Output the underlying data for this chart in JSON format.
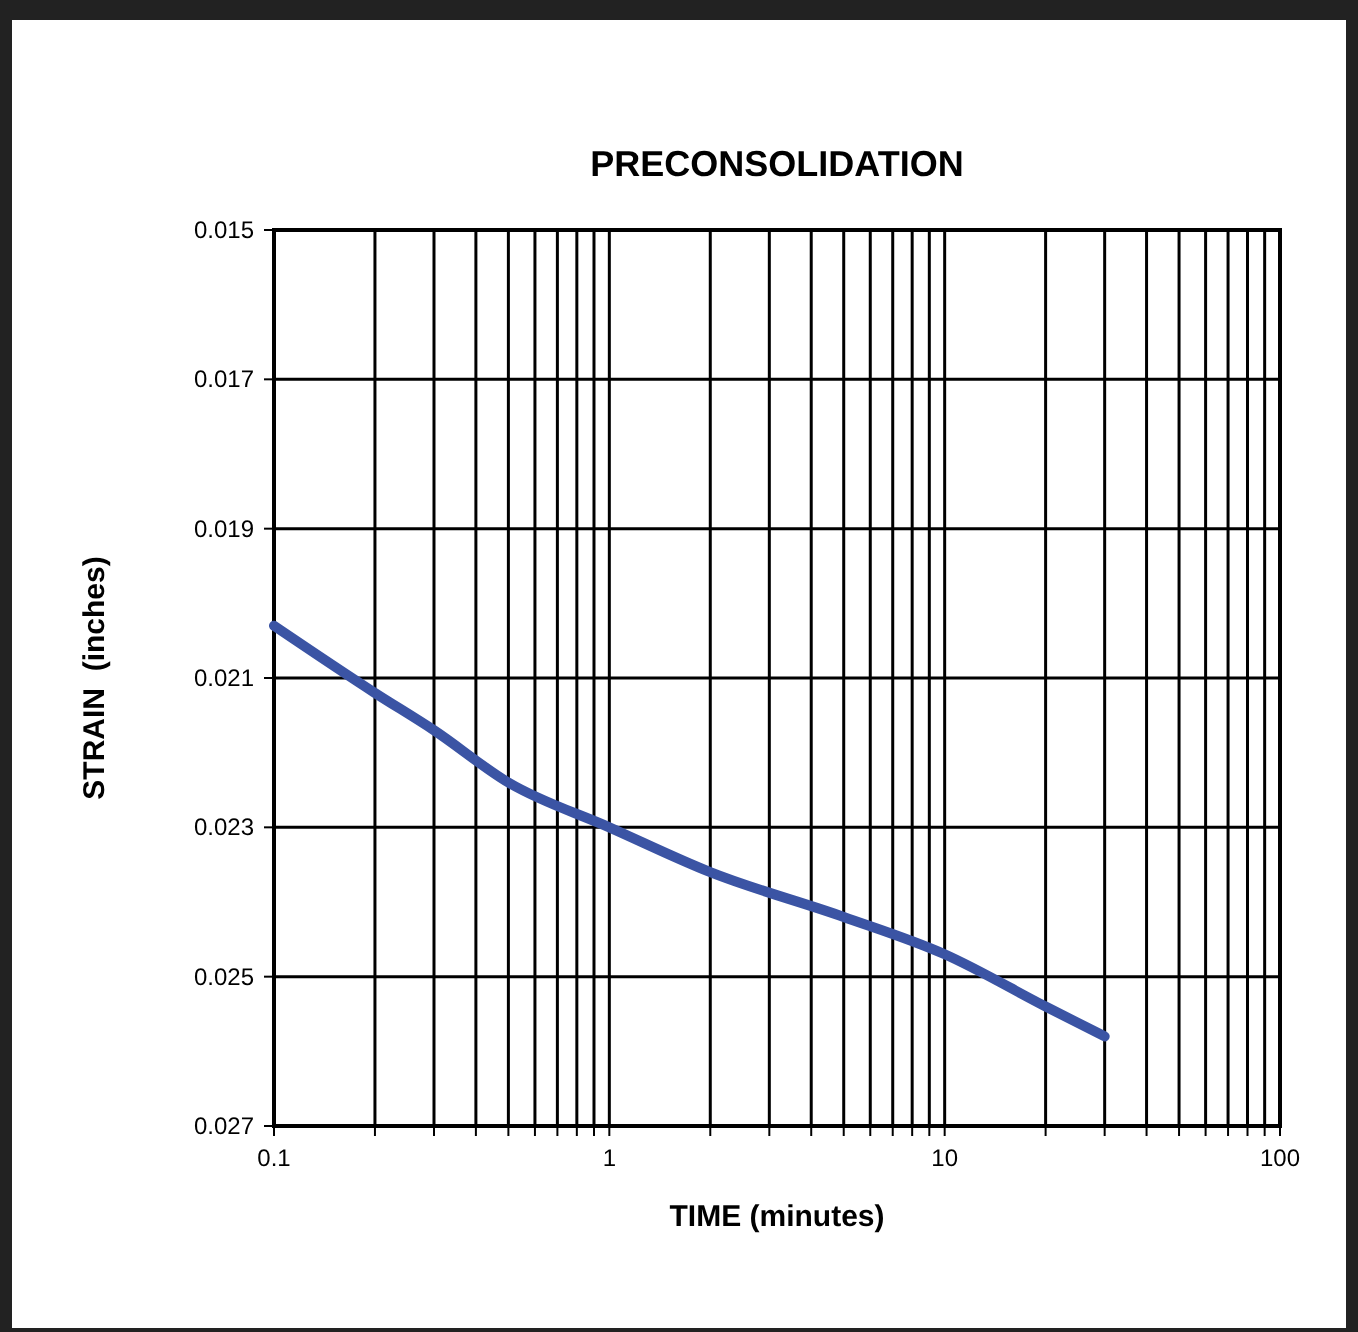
{
  "chart_data": {
    "type": "line",
    "title": "PRECONSOLIDATION",
    "xlabel": "TIME (minutes)",
    "ylabel": "STRAIN  (inches)",
    "log": "x",
    "grid": true,
    "marker": "none",
    "line_style": "solid",
    "xlim": [
      0.1,
      100
    ],
    "ylim": [
      0.027,
      0.015
    ],
    "xticks": [
      0.1,
      {
        "value": 0.2,
        "label": null
      },
      {
        "value": 0.3,
        "label": null
      },
      {
        "value": 0.4,
        "label": null
      },
      {
        "value": 0.5,
        "label": null
      },
      {
        "value": 0.6,
        "label": null
      },
      {
        "value": 0.7,
        "label": null
      },
      {
        "value": 0.8,
        "label": null
      },
      {
        "value": 0.9,
        "label": null
      },
      1,
      {
        "value": 2,
        "label": null
      },
      {
        "value": 3,
        "label": null
      },
      {
        "value": 4,
        "label": null
      },
      {
        "value": 5,
        "label": null
      },
      {
        "value": 6,
        "label": null
      },
      {
        "value": 7,
        "label": null
      },
      {
        "value": 8,
        "label": null
      },
      {
        "value": 9,
        "label": null
      },
      10,
      {
        "value": 20,
        "label": null
      },
      {
        "value": 30,
        "label": null
      },
      {
        "value": 40,
        "label": null
      },
      {
        "value": 50,
        "label": null
      },
      {
        "value": 60,
        "label": null
      },
      {
        "value": 70,
        "label": null
      },
      {
        "value": 80,
        "label": null
      },
      {
        "value": 90,
        "label": null
      },
      100
    ],
    "yticks": [
      0.015,
      0.017,
      0.019,
      0.021,
      0.023,
      0.025,
      0.027
    ],
    "x": [
      0.1,
      0.2,
      0.3,
      0.5,
      1,
      2,
      5,
      10,
      20,
      30
    ],
    "series": [
      {
        "color": "#3b54a4",
        "values": [
          0.0203,
          0.0212,
          0.0217,
          0.0224,
          0.023,
          0.0236,
          0.0242,
          0.0247,
          0.0254,
          0.0258
        ]
      }
    ]
  }
}
